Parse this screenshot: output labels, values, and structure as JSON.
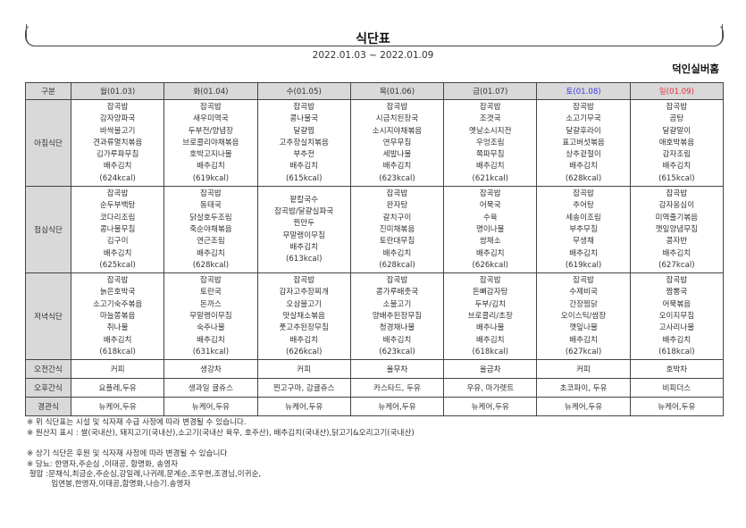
{
  "title": "식단표",
  "period": "2022.01.03 ~ 2022.01.09",
  "facility": "덕인실버홈",
  "colors": {
    "saturday": "#3a3af0",
    "sunday": "#e0303a",
    "header_bg": "#d9d9d9"
  },
  "table": {
    "corner": "구분",
    "days": [
      "월(01.03)",
      "화(01.04)",
      "수(01.05)",
      "목(01.06)",
      "금(01.07)",
      "토(01.08)",
      "일(01.09)"
    ],
    "meals": [
      {
        "label": "아침식단",
        "cells": [
          [
            "잡곡밥",
            "감자양파국",
            "바싹불고기",
            "견과류멸치볶음",
            "김가루파무침",
            "배추김치",
            "(624kcal)"
          ],
          [
            "잡곡밥",
            "새우미역국",
            "두부전/양념장",
            "브로콜리야채볶음",
            "호박고지나물",
            "배추김치",
            "(619kcal)"
          ],
          [
            "잡곡밥",
            "콩나물국",
            "달걀찜",
            "고추장실치볶음",
            "부추전",
            "배추김치",
            "(615kcal)"
          ],
          [
            "잡곡밥",
            "시금치된장국",
            "소시지야채볶음",
            "연무무침",
            "세발나물",
            "배추김치",
            "(623kcal)"
          ],
          [
            "잡곡밥",
            "조갯국",
            "옛날소시지전",
            "우엉조림",
            "쪽파무침",
            "배추김치",
            "(621kcal)"
          ],
          [
            "잡곡밥",
            "소고기무국",
            "달걀후라이",
            "표고버섯볶음",
            "상추겉절이",
            "배추김치",
            "(628kcal)"
          ],
          [
            "잡곡밥",
            "곰탕",
            "달걀말이",
            "애호박볶음",
            "감자조림",
            "배추김치",
            "(615kcal)"
          ]
        ]
      },
      {
        "label": "점심식단",
        "cells": [
          [
            "잡곡밥",
            "순두부백탕",
            "코다리조림",
            "콩나물무침",
            "김구이",
            "배추김치",
            "(625kcal)"
          ],
          [
            "잡곡밥",
            "동태국",
            "닭살호두조림",
            "죽순야채볶음",
            "연근조림",
            "배추김치",
            "(628kcal)"
          ],
          [
            "팥칼국수",
            "잡곡밥/달걀실파국",
            "찐만두",
            "무말랭이무침",
            "배추김치",
            "(613kcal)"
          ],
          [
            "잡곡밥",
            "완자탕",
            "갈치구이",
            "진미채볶음",
            "토란대무침",
            "배추김치",
            "(628kcal)"
          ],
          [
            "잡곡밥",
            "어묵국",
            "수육",
            "명이나물",
            "쌈채소",
            "배추김치",
            "(626kcal)"
          ],
          [
            "잡곡밥",
            "추어탕",
            "세송이조림",
            "부추무침",
            "무생채",
            "배추김치",
            "(619kcal)"
          ],
          [
            "잡곡밥",
            "감자옹심이",
            "미역줄기볶음",
            "깻잎양념무침",
            "콩자반",
            "배추김치",
            "(627kcal)"
          ]
        ]
      },
      {
        "label": "저녁식단",
        "cells": [
          [
            "잡곡밥",
            "늙은호박국",
            "소고기숙주볶음",
            "마늘쫑볶음",
            "취나물",
            "배추김치",
            "(618kcal)"
          ],
          [
            "잡곡밥",
            "토란국",
            "돈까스",
            "무말랭이무침",
            "숙주나물",
            "배추김치",
            "(631kcal)"
          ],
          [
            "잡곡밥",
            "감자고추장찌개",
            "오삼불고기",
            "맛살채소볶음",
            "풋고추된장무침",
            "배추김치",
            "(626kcal)"
          ],
          [
            "잡곡밥",
            "콩가루배춧국",
            "소불고기",
            "양배추된장무침",
            "청경채나물",
            "배추김치",
            "(623kcal)"
          ],
          [
            "잡곡밥",
            "돈뼈감자탕",
            "두부/김치",
            "브로콜리/초장",
            "배추나물",
            "배추김치",
            "(618kcal)"
          ],
          [
            "잡곡밥",
            "수제비국",
            "간장찜닭",
            "오이스틱/쌈장",
            "깻잎나물",
            "배추김치",
            "(627kcal)"
          ],
          [
            "잡곡밥",
            "짬뽕국",
            "어묵볶음",
            "오이지무침",
            "고사리나물",
            "배추김치",
            "(618kcal)"
          ]
        ]
      }
    ],
    "snacks": [
      {
        "label": "오전간식",
        "cells": [
          "커피",
          "생강차",
          "커피",
          "율무차",
          "울금차",
          "커피",
          "호박차"
        ]
      },
      {
        "label": "오후간식",
        "cells": [
          "요플레,두유",
          "생과일 귤쥬스",
          "찐고구마, 감귤쥬스",
          "카스타드, 두유",
          "우유, 마가렛트",
          "초코파이, 두유",
          "비피더스"
        ]
      },
      {
        "label": "경관식",
        "cells": [
          "뉴케어,두유",
          "뉴케어,두유",
          "뉴케어,두유",
          "뉴케어,두유",
          "뉴케어,두유",
          "뉴케어,두유",
          "뉴케어,두유"
        ]
      }
    ]
  },
  "notes": {
    "line1": "※ 위 식단표는 시설 및 식자재 수급 사정에 따라 변경될 수 있습니다.",
    "line2": "※ 원산지 표시 : 쌀(국내산), 돼지고기(국내산),소고기(국내산 육우, 호주산), 배추김치(국내산),닭고기&오리고기(국내산)",
    "line3": "※ 상기 식단은 후원 및 식자재 사정에 따라 변경될 수 있습니다",
    "line4": "※ 당뇨: 한영자,주순심 ,이태공, 함명화, 송영자",
    "line5": " 혈압 :문채식,최금순,주순심,강일례,나귀례,문계순,조우현,조경님,이귀순,",
    "line6": "          임연봉,한영자,이태공,함명화,나승기.송영자"
  }
}
